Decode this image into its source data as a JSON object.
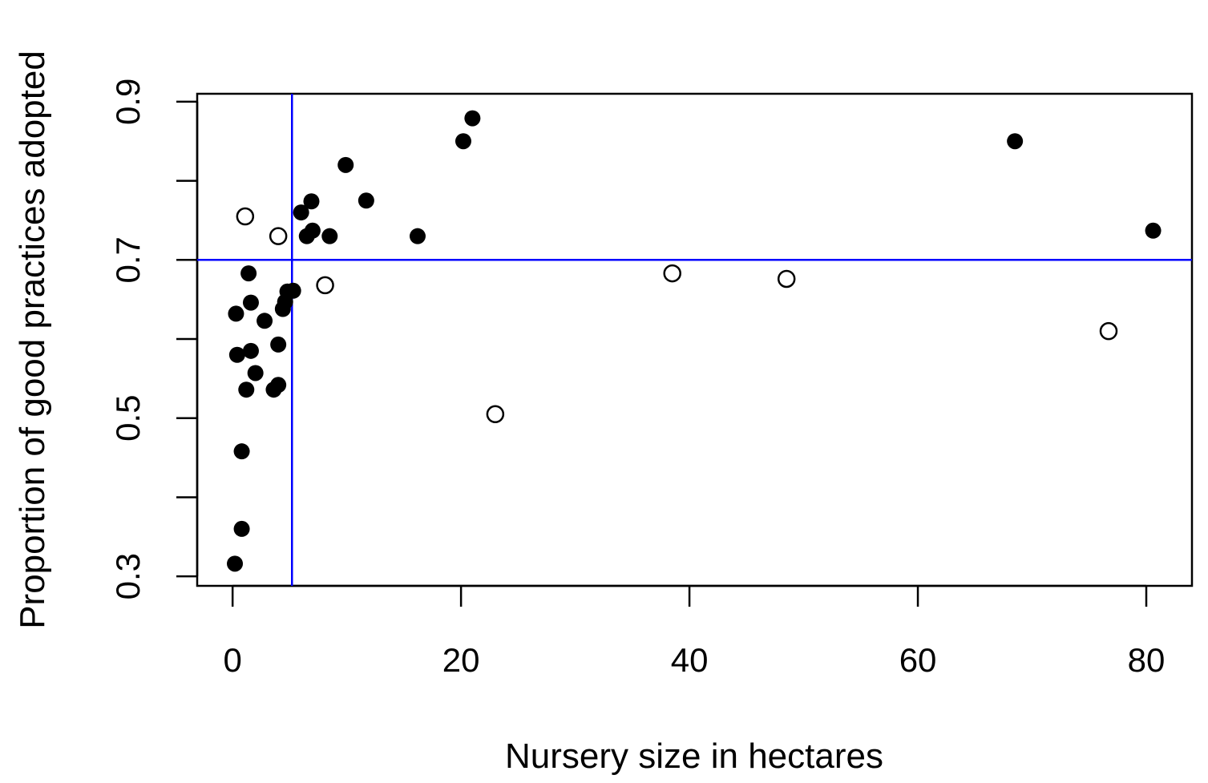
{
  "chart_data": {
    "type": "scatter",
    "title": "",
    "xlabel": "Nursery size in hectares",
    "ylabel": "Proportion of good practices adopted",
    "xlim": [
      -3.1,
      84
    ],
    "ylim": [
      0.288,
      0.91
    ],
    "x_ticks": [
      0,
      20,
      40,
      60,
      80
    ],
    "x_tick_labels": [
      "0",
      "20",
      "40",
      "60",
      "80"
    ],
    "y_ticks": [
      0.3,
      0.4,
      0.5,
      0.6,
      0.7,
      0.8,
      0.9
    ],
    "y_tick_labels": [
      "0.3",
      "",
      "0.5",
      "",
      "0.7",
      "",
      "0.9"
    ],
    "grid": false,
    "reference_lines": {
      "vertical_x": 5.2,
      "horizontal_y": 0.7,
      "color": "#0000ff"
    },
    "series": [
      {
        "marker": "filled-circle",
        "color": "#000000",
        "points": [
          {
            "x": 0.2,
            "y": 0.316
          },
          {
            "x": 0.8,
            "y": 0.36
          },
          {
            "x": 0.8,
            "y": 0.458
          },
          {
            "x": 1.2,
            "y": 0.536
          },
          {
            "x": 2.0,
            "y": 0.557
          },
          {
            "x": 3.6,
            "y": 0.536
          },
          {
            "x": 4.0,
            "y": 0.542
          },
          {
            "x": 0.4,
            "y": 0.58
          },
          {
            "x": 1.6,
            "y": 0.585
          },
          {
            "x": 4.0,
            "y": 0.593
          },
          {
            "x": 2.8,
            "y": 0.623
          },
          {
            "x": 0.3,
            "y": 0.632
          },
          {
            "x": 1.6,
            "y": 0.646
          },
          {
            "x": 4.4,
            "y": 0.638
          },
          {
            "x": 4.6,
            "y": 0.647
          },
          {
            "x": 4.8,
            "y": 0.66
          },
          {
            "x": 5.3,
            "y": 0.661
          },
          {
            "x": 1.4,
            "y": 0.683
          },
          {
            "x": 6.5,
            "y": 0.73
          },
          {
            "x": 7.0,
            "y": 0.737
          },
          {
            "x": 8.5,
            "y": 0.73
          },
          {
            "x": 6.0,
            "y": 0.76
          },
          {
            "x": 6.9,
            "y": 0.774
          },
          {
            "x": 9.9,
            "y": 0.82
          },
          {
            "x": 11.7,
            "y": 0.775
          },
          {
            "x": 16.2,
            "y": 0.73
          },
          {
            "x": 20.2,
            "y": 0.85
          },
          {
            "x": 21.0,
            "y": 0.879
          },
          {
            "x": 68.5,
            "y": 0.85
          },
          {
            "x": 80.6,
            "y": 0.737
          }
        ]
      },
      {
        "marker": "open-circle",
        "color": "#000000",
        "points": [
          {
            "x": 1.1,
            "y": 0.755
          },
          {
            "x": 4.0,
            "y": 0.73
          },
          {
            "x": 8.1,
            "y": 0.668
          },
          {
            "x": 23.0,
            "y": 0.505
          },
          {
            "x": 38.5,
            "y": 0.683
          },
          {
            "x": 48.5,
            "y": 0.676
          },
          {
            "x": 76.7,
            "y": 0.61
          }
        ]
      }
    ]
  }
}
